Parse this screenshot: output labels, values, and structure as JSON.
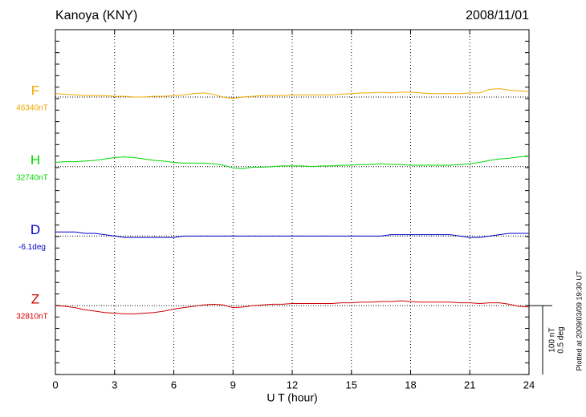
{
  "chart_data": {
    "type": "line",
    "title": "Kanoya (KNY)",
    "date": "2008/11/01",
    "x_label": "U T (hour)",
    "xlim": [
      0,
      24
    ],
    "xticks": [
      0,
      3,
      6,
      9,
      12,
      15,
      18,
      21,
      24
    ],
    "x": [
      0,
      0.5,
      1,
      1.5,
      2,
      2.5,
      3,
      3.5,
      4,
      4.5,
      5,
      5.5,
      6,
      6.5,
      7,
      7.5,
      8,
      8.5,
      9,
      9.5,
      10,
      10.5,
      11,
      11.5,
      12,
      12.5,
      13,
      13.5,
      14,
      14.5,
      15,
      15.5,
      16,
      16.5,
      17,
      17.5,
      18,
      18.5,
      19,
      19.5,
      20,
      20.5,
      21,
      21.5,
      22,
      22.5,
      23,
      23.5,
      24
    ],
    "series": [
      {
        "name": "F",
        "color": "#f0a800",
        "baseline": {
          "value": 46340,
          "label": "46340nT"
        },
        "values": [
          46345,
          46344,
          46343,
          46342,
          46342,
          46342,
          46341,
          46341,
          46340,
          46340,
          46341,
          46341,
          46342,
          46343,
          46345,
          46346,
          46344,
          46340,
          46338,
          46340,
          46341,
          46342,
          46342,
          46342,
          46343,
          46343,
          46343,
          46343,
          46343,
          46344,
          46345,
          46346,
          46346,
          46347,
          46346,
          46347,
          46347,
          46346,
          46345,
          46345,
          46345,
          46345,
          46346,
          46346,
          46351,
          46352,
          46350,
          46349,
          46348
        ]
      },
      {
        "name": "H",
        "color": "#00d800",
        "baseline": {
          "value": 32740,
          "label": "32740nT"
        },
        "values": [
          32746,
          32747,
          32747,
          32748,
          32749,
          32751,
          32753,
          32754,
          32753,
          32751,
          32749,
          32748,
          32746,
          32745,
          32745,
          32745,
          32744,
          32742,
          32738,
          32737,
          32739,
          32739,
          32740,
          32741,
          32741,
          32741,
          32740,
          32741,
          32741,
          32742,
          32742,
          32743,
          32743,
          32744,
          32743,
          32743,
          32742,
          32742,
          32742,
          32742,
          32742,
          32743,
          32744,
          32746,
          32749,
          32751,
          32752,
          32754,
          32755
        ]
      },
      {
        "name": "D",
        "color": "#0000c8",
        "baseline": {
          "value": -6.1,
          "label": "-6.1deg"
        },
        "values": [
          -6.07,
          -6.07,
          -6.07,
          -6.08,
          -6.08,
          -6.09,
          -6.1,
          -6.11,
          -6.11,
          -6.11,
          -6.11,
          -6.11,
          -6.11,
          -6.1,
          -6.1,
          -6.1,
          -6.1,
          -6.1,
          -6.1,
          -6.1,
          -6.1,
          -6.1,
          -6.1,
          -6.1,
          -6.1,
          -6.1,
          -6.1,
          -6.1,
          -6.1,
          -6.1,
          -6.1,
          -6.1,
          -6.1,
          -6.1,
          -6.09,
          -6.09,
          -6.09,
          -6.09,
          -6.09,
          -6.09,
          -6.09,
          -6.1,
          -6.11,
          -6.11,
          -6.1,
          -6.09,
          -6.08,
          -6.08,
          -6.08
        ]
      },
      {
        "name": "Z",
        "color": "#d00000",
        "baseline": {
          "value": 32810,
          "label": "32810nT"
        },
        "values": [
          32810,
          32809,
          32807,
          32804,
          32802,
          32800,
          32799,
          32798,
          32798,
          32799,
          32800,
          32802,
          32805,
          32807,
          32809,
          32811,
          32812,
          32811,
          32807,
          32808,
          32810,
          32811,
          32812,
          32812,
          32813,
          32813,
          32813,
          32813,
          32813,
          32814,
          32814,
          32815,
          32815,
          32816,
          32816,
          32817,
          32816,
          32815,
          32815,
          32815,
          32815,
          32814,
          32814,
          32813,
          32814,
          32814,
          32812,
          32809,
          32808
        ]
      }
    ],
    "scale_bar": {
      "nt": {
        "value": 100,
        "label": "100 nT"
      },
      "deg": {
        "value": 0.5,
        "label": "0.5 deg"
      }
    },
    "footnote": "Plotted at 2009/03/09 19:30 UT"
  }
}
